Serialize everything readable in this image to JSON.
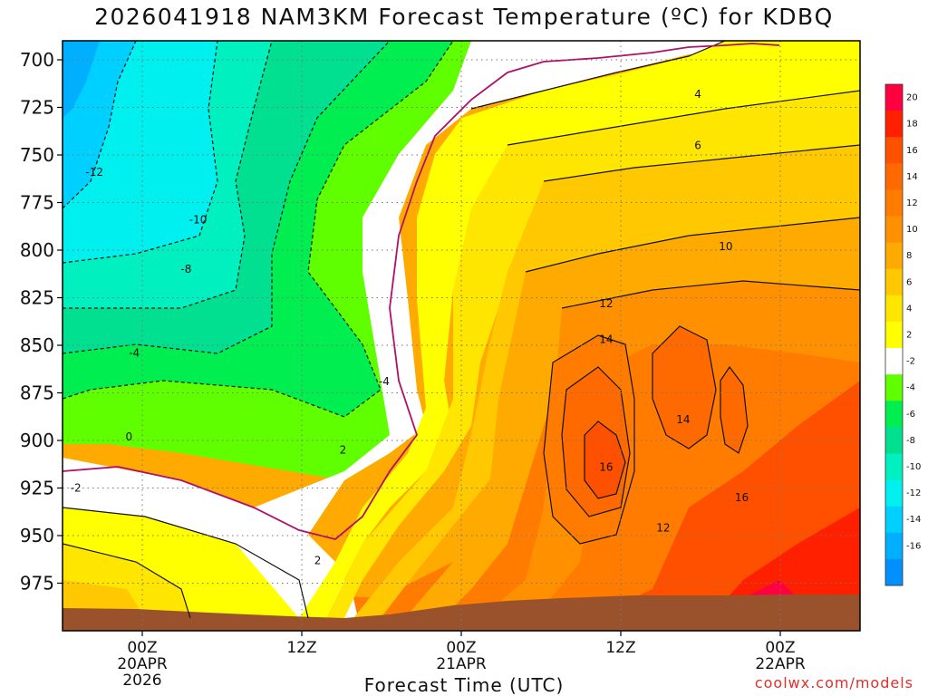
{
  "title": "2026041918 NAM3KM Forecast Temperature (ºC) for KDBQ",
  "xlabel": "Forecast Time (UTC)",
  "credit": "coolwx.com/models",
  "chart_data": {
    "type": "contour",
    "title": "2026041918 NAM3KM Forecast Temperature (ºC) for KDBQ",
    "xlabel": "Forecast Time (UTC)",
    "ylabel": "",
    "y_ticks": [
      700,
      725,
      750,
      775,
      800,
      825,
      850,
      875,
      900,
      925,
      950,
      975
    ],
    "ylim": [
      1000,
      690
    ],
    "xlim_hours": [
      -6,
      54
    ],
    "x_ticks": [
      {
        "hour": 0,
        "label": "00Z",
        "date": "20APR",
        "year": "2026"
      },
      {
        "hour": 12,
        "label": "12Z"
      },
      {
        "hour": 24,
        "label": "00Z",
        "date": "21APR"
      },
      {
        "hour": 36,
        "label": "12Z"
      },
      {
        "hour": 48,
        "label": "00Z",
        "date": "22APR"
      }
    ],
    "grid": true,
    "colorbar": {
      "position": "right",
      "levels": [
        20,
        18,
        16,
        14,
        12,
        10,
        8,
        6,
        4,
        2,
        -2,
        -4,
        -6,
        -8,
        -10,
        -12,
        -14,
        -16
      ],
      "colors": [
        "#ff0040",
        "#ff2000",
        "#ff5000",
        "#ff6a00",
        "#ff7c00",
        "#ff9000",
        "#ffaa00",
        "#ffc800",
        "#ffe600",
        "#ffff00",
        "#ffffff",
        "#60ff00",
        "#00ee50",
        "#00e090",
        "#00f0c0",
        "#00f0f0",
        "#00d0ff",
        "#00b0ff",
        "#0090ff"
      ]
    },
    "contour_labels": [
      {
        "text": "-12",
        "hour": -3.6,
        "p": 759
      },
      {
        "text": "-10",
        "hour": 4.2,
        "p": 784
      },
      {
        "text": "-8",
        "hour": 3.3,
        "p": 810
      },
      {
        "text": "-4",
        "hour": -0.6,
        "p": 854
      },
      {
        "text": "-4",
        "hour": 18.2,
        "p": 869
      },
      {
        "text": "0",
        "hour": -1,
        "p": 898
      },
      {
        "text": "-2",
        "hour": -5,
        "p": 925
      },
      {
        "text": "2",
        "hour": 15.1,
        "p": 905
      },
      {
        "text": "2",
        "hour": 13.2,
        "p": 963
      },
      {
        "text": "4",
        "hour": 41.8,
        "p": 718
      },
      {
        "text": "6",
        "hour": 41.8,
        "p": 745
      },
      {
        "text": "10",
        "hour": 43.9,
        "p": 798
      },
      {
        "text": "12",
        "hour": 34.9,
        "p": 828
      },
      {
        "text": "14",
        "hour": 34.9,
        "p": 847
      },
      {
        "text": "14",
        "hour": 40.7,
        "p": 889
      },
      {
        "text": "16",
        "hour": 34.9,
        "p": 914
      },
      {
        "text": "16",
        "hour": 45.1,
        "p": 930
      },
      {
        "text": "12",
        "hour": 39.2,
        "p": 946
      }
    ]
  },
  "colors": {
    "terrain": "#9a522c",
    "freezing_line": "#b0106a",
    "credit": "#e0302a"
  }
}
